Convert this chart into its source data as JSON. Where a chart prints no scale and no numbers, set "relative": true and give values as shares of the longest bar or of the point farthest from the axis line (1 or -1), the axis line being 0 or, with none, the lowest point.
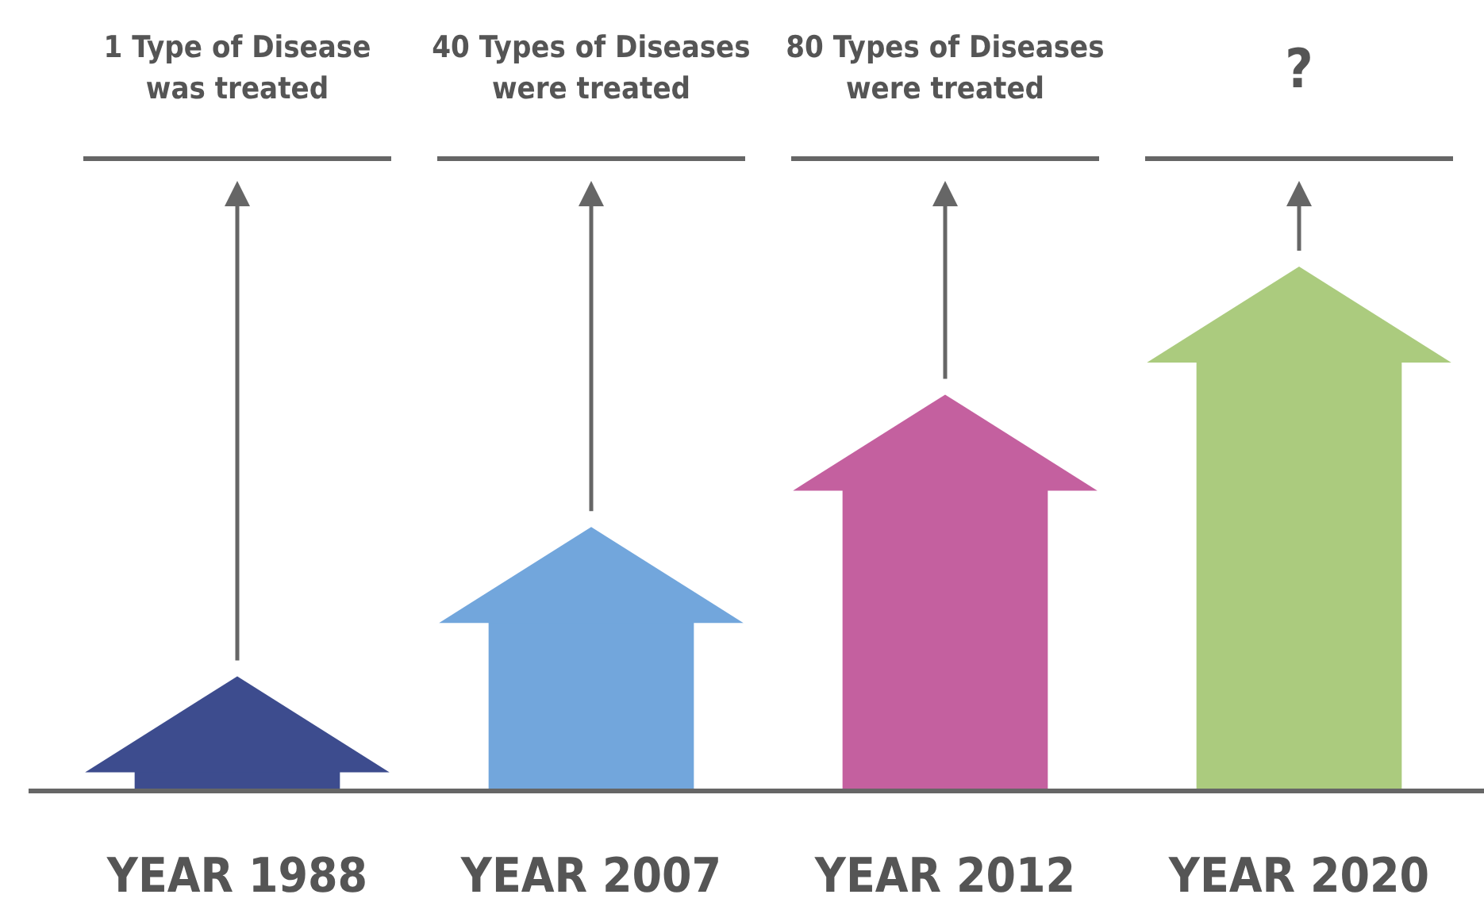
{
  "chart_data": {
    "type": "bar",
    "relative": true,
    "categories": [
      "YEAR 1988",
      "YEAR 2007",
      "YEAR 2012",
      "YEAR 2020"
    ],
    "values": [
      0.04,
      0.39,
      0.7,
      1
    ],
    "colors": [
      "#3d4c8e",
      "#72a6dc",
      "#c4609f",
      "#abcb7e"
    ],
    "annotations": [
      "1 Type of Disease was treated",
      "40 Types of Diseases were treated",
      "80 Types of Diseases were treated",
      "?"
    ]
  }
}
